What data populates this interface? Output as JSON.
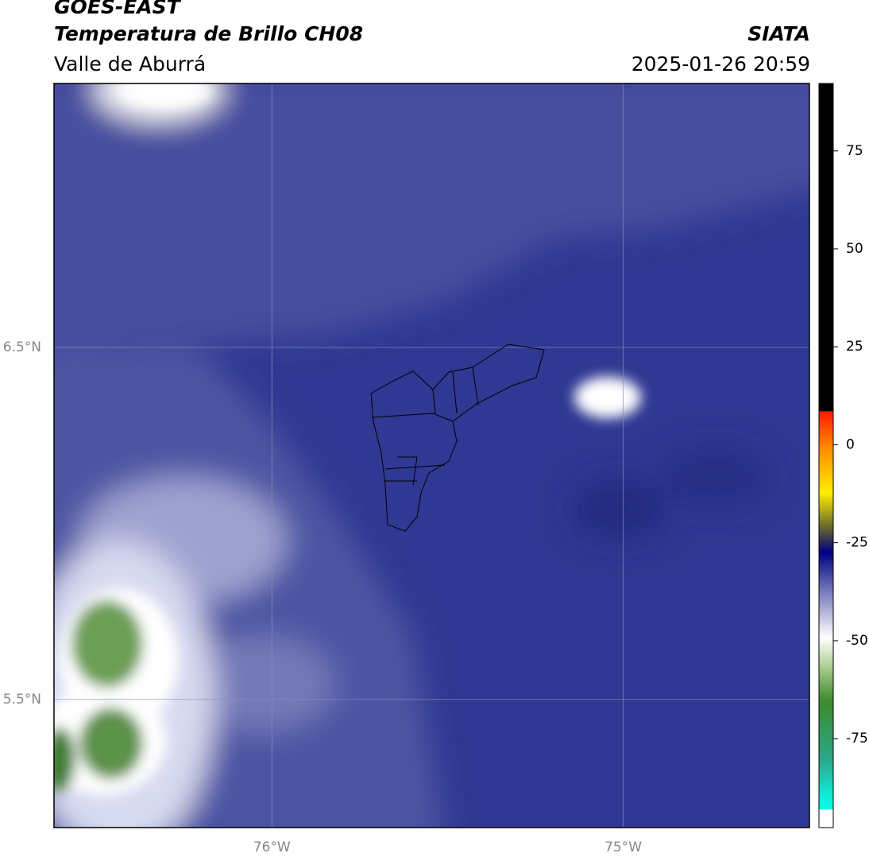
{
  "header": {
    "title": "GOES-EAST",
    "subtitle": "Temperatura de Brillo CH08",
    "region": "Valle de Aburrá",
    "source": "SIATA",
    "datetime": "2025-01-26 20:59"
  },
  "map": {
    "lonlim": [
      -76.62,
      -74.47
    ],
    "latlim": [
      5.136,
      7.25
    ],
    "lonticks": [
      {
        "value": -76,
        "label": "76°W"
      },
      {
        "value": -75,
        "label": "75°W"
      }
    ],
    "latticks": [
      {
        "value": 6.5,
        "label": "6.5°N"
      },
      {
        "value": 5.5,
        "label": "5.5°N"
      }
    ]
  },
  "colorbar": {
    "lim": [
      -97.7,
      92.2
    ],
    "ticks": [
      75,
      50,
      25,
      0,
      -25,
      -50,
      -75
    ]
  }
}
